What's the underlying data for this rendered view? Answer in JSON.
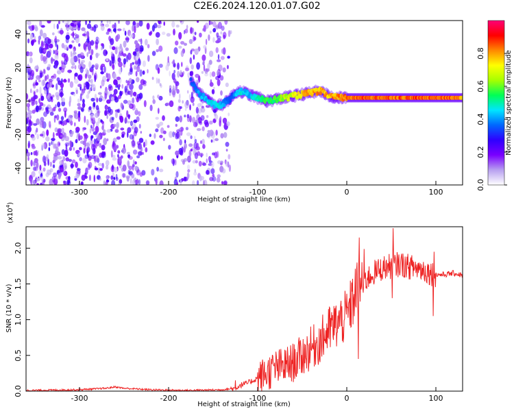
{
  "title": "C2E6.2024.120.01.07.G02",
  "chart_data": [
    {
      "type": "heatmap",
      "xlabel": "Height of straight line (km)",
      "ylabel": "Frequency (Hz)",
      "xlim": [
        -360,
        130
      ],
      "ylim": [
        -50,
        48
      ],
      "xticks": [
        -300,
        -200,
        -100,
        0,
        100
      ],
      "yticks": [
        -40,
        -20,
        0,
        20,
        40
      ],
      "colorbar": {
        "label": "Normalized spectral amplitude",
        "range": [
          0.0,
          1.0
        ],
        "ticks": [
          0.0,
          0.2,
          0.4,
          0.6,
          0.8
        ],
        "colors": [
          "#ffffff",
          "#b8a0f0",
          "#7a00ff",
          "#2f00ff",
          "#0066ff",
          "#00e5ff",
          "#00ff55",
          "#a6ff00",
          "#ffff00",
          "#ff8800",
          "#ff0000",
          "#ff0077"
        ]
      },
      "noise_region_x": [
        -360,
        -130
      ],
      "signal_track": {
        "x": [
          -175,
          -170,
          -165,
          -160,
          -155,
          -150,
          -145,
          -140,
          -135,
          -130,
          -125,
          -120,
          -110,
          -100,
          -90,
          -80,
          -70,
          -60,
          -50,
          -40,
          -30,
          -20,
          -10,
          0,
          20,
          40,
          60,
          80,
          100,
          120,
          130
        ],
        "y": [
          12,
          8,
          4,
          2,
          0,
          -2,
          -3,
          -2,
          0,
          2,
          5,
          6,
          4,
          2,
          0,
          1,
          2,
          3,
          4,
          5,
          6,
          3,
          2,
          2,
          2,
          2,
          2,
          2,
          2,
          2,
          2
        ],
        "amplitude": [
          0.35,
          0.4,
          0.45,
          0.45,
          0.5,
          0.5,
          0.5,
          0.45,
          0.4,
          0.35,
          0.45,
          0.5,
          0.45,
          0.55,
          0.6,
          0.6,
          0.7,
          0.75,
          0.8,
          0.85,
          0.85,
          0.85,
          0.88,
          0.9,
          0.92,
          0.92,
          0.92,
          0.92,
          0.92,
          0.9,
          0.85
        ]
      }
    },
    {
      "type": "line",
      "xlabel": "Height of straight line (km)",
      "ylabel": "SNR (10 * v/v)",
      "scale_label": "(x10",
      "scale_exp": "4",
      "scale_close": ")",
      "xlim": [
        -360,
        130
      ],
      "ylim": [
        0,
        2.3
      ],
      "xticks": [
        -300,
        -200,
        -100,
        0,
        100
      ],
      "yticks": [
        0.0,
        0.5,
        1.0,
        1.5,
        2.0
      ],
      "ytick_labels": [
        "0.0",
        "0.5",
        "1.0",
        "1.5",
        "2.0"
      ],
      "line_color": "#ee2222",
      "series": [
        {
          "x": [
            -360,
            -300,
            -270,
            -260,
            -250,
            -220,
            -180,
            -140,
            -125,
            -120,
            -110,
            -100,
            -90,
            -80,
            -70,
            -60,
            -50,
            -40,
            -30,
            -20,
            -10,
            0,
            5,
            10,
            15,
            20,
            30,
            40,
            50,
            60,
            70,
            80,
            90,
            95,
            100,
            110,
            120,
            130
          ],
          "y": [
            0.01,
            0.02,
            0.04,
            0.06,
            0.04,
            0.02,
            0.01,
            0.02,
            0.04,
            0.08,
            0.12,
            0.18,
            0.25,
            0.32,
            0.35,
            0.4,
            0.5,
            0.6,
            0.7,
            0.85,
            0.95,
            1.05,
            1.2,
            1.4,
            1.5,
            1.55,
            1.65,
            1.72,
            1.75,
            1.78,
            1.74,
            1.72,
            1.68,
            1.65,
            1.63,
            1.63,
            1.65,
            1.62
          ]
        }
      ],
      "spikes": [
        {
          "x": 14,
          "y": 2.15
        },
        {
          "x": 13,
          "y": 0.45
        },
        {
          "x": 52,
          "y": 2.28
        },
        {
          "x": 51,
          "y": 1.3
        },
        {
          "x": 98,
          "y": 1.95
        },
        {
          "x": 97,
          "y": 1.05
        },
        {
          "x": -125,
          "y": 0.15
        }
      ]
    }
  ]
}
